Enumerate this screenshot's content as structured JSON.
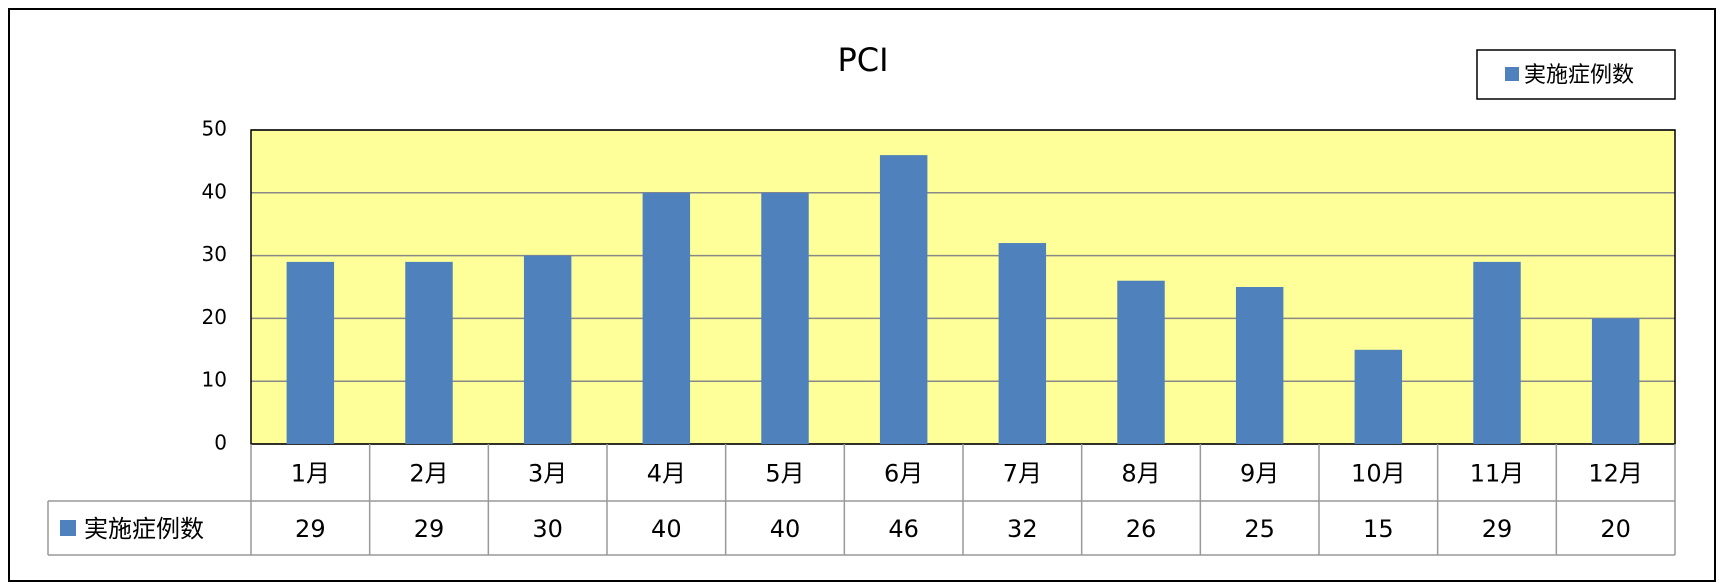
{
  "chart_data": {
    "type": "bar",
    "title": "PCI",
    "categories": [
      "1月",
      "2月",
      "3月",
      "4月",
      "5月",
      "6月",
      "7月",
      "8月",
      "9月",
      "10月",
      "11月",
      "12月"
    ],
    "series": [
      {
        "name": "実施症例数",
        "color": "#4f81bd",
        "values": [
          29,
          29,
          30,
          40,
          40,
          46,
          32,
          26,
          25,
          15,
          29,
          20
        ]
      }
    ],
    "ylim": [
      0,
      50
    ],
    "yticks": [
      0,
      10,
      20,
      30,
      40,
      50
    ],
    "grid": true,
    "legend": "top-right",
    "plot_background": "#ffff99",
    "data_table": true
  }
}
